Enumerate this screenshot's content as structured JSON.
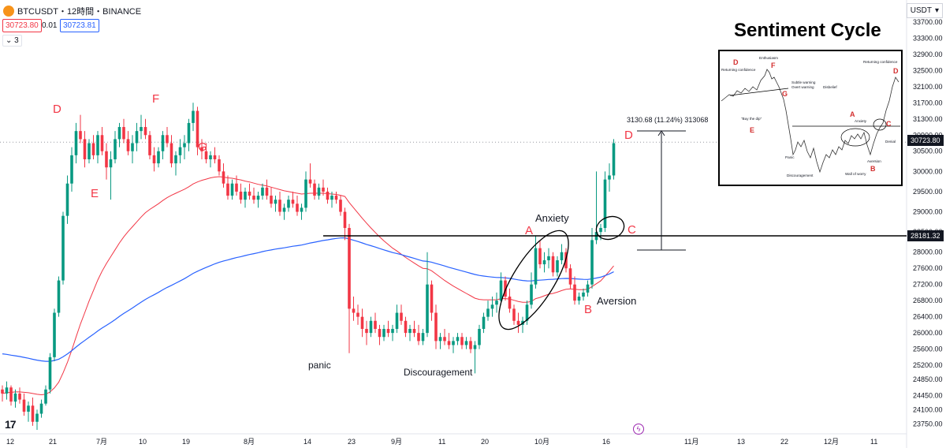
{
  "header": {
    "symbol": "BTCUSDT・12時間・BINANCE",
    "bid": "30723.80",
    "spread": "0.01",
    "ask": "30723.81",
    "layers": "3",
    "currency": "USDT"
  },
  "colors": {
    "up": "#089981",
    "down": "#f23645",
    "ema_short": "#f23645",
    "ema_long": "#2962ff",
    "annotation_red": "#f23645",
    "bitcoin_logo": "#f7931a"
  },
  "chart_data": {
    "type": "candlestick",
    "y_axis": {
      "ticks": [
        "33700.00",
        "33300.00",
        "32900.00",
        "32500.00",
        "32100.00",
        "31700.00",
        "31300.00",
        "30900.00",
        "30500.00",
        "30000.00",
        "29500.00",
        "29000.00",
        "28500.00",
        "28000.00",
        "27600.00",
        "27200.00",
        "26800.00",
        "26400.00",
        "26000.00",
        "25600.00",
        "25200.00",
        "24850.00",
        "24450.00",
        "24100.00",
        "23750.00"
      ],
      "range": [
        23600,
        34050
      ]
    },
    "x_axis": {
      "ticks": [
        "12",
        "21",
        "7月",
        "10",
        "19",
        "8月",
        "14",
        "23",
        "9月",
        "11",
        "20",
        "10月",
        "16",
        "11月",
        "13",
        "22",
        "12月",
        "11"
      ]
    },
    "price_labels": {
      "current": "30723.80",
      "level": "28181.32"
    },
    "candles": [
      [
        24600,
        24700,
        24300,
        24500
      ],
      [
        24500,
        24800,
        24350,
        24650
      ],
      [
        24650,
        24700,
        24200,
        24300
      ],
      [
        24300,
        24600,
        24150,
        24500
      ],
      [
        24500,
        24650,
        24250,
        24350
      ],
      [
        24350,
        24500,
        23950,
        24050
      ],
      [
        24050,
        24300,
        23800,
        24200
      ],
      [
        24200,
        24400,
        23700,
        23800
      ],
      [
        23800,
        24100,
        23600,
        24000
      ],
      [
        24000,
        24350,
        23900,
        24250
      ],
      [
        24250,
        24700,
        24200,
        24600
      ],
      [
        24600,
        25500,
        24500,
        25400
      ],
      [
        25400,
        26600,
        25300,
        26500
      ],
      [
        26500,
        27400,
        26400,
        27300
      ],
      [
        27300,
        29000,
        27200,
        28900
      ],
      [
        28900,
        29900,
        28700,
        29700
      ],
      [
        29700,
        30600,
        29500,
        30400
      ],
      [
        30400,
        31200,
        30200,
        31000
      ],
      [
        31000,
        31400,
        30700,
        30800
      ],
      [
        30800,
        31000,
        30100,
        30300
      ],
      [
        30300,
        30800,
        30200,
        30700
      ],
      [
        30700,
        30900,
        30300,
        30400
      ],
      [
        30400,
        31000,
        30200,
        30900
      ],
      [
        30900,
        31100,
        30400,
        30500
      ],
      [
        30500,
        30700,
        29800,
        30100
      ],
      [
        30100,
        30500,
        29300,
        30300
      ],
      [
        30300,
        31000,
        30200,
        30800
      ],
      [
        30800,
        31200,
        30600,
        31100
      ],
      [
        31100,
        31300,
        30700,
        30800
      ],
      [
        30800,
        31000,
        30400,
        30500
      ],
      [
        30500,
        30900,
        30200,
        30700
      ],
      [
        30700,
        31200,
        30500,
        31000
      ],
      [
        31000,
        31400,
        30800,
        31100
      ],
      [
        31100,
        31300,
        30800,
        30900
      ],
      [
        30900,
        31000,
        30300,
        30400
      ],
      [
        30400,
        30600,
        30000,
        30200
      ],
      [
        30200,
        30600,
        30100,
        30500
      ],
      [
        30500,
        31000,
        30300,
        30900
      ],
      [
        30900,
        31100,
        30600,
        30700
      ],
      [
        30700,
        30900,
        30100,
        30200
      ],
      [
        30200,
        30500,
        29900,
        30400
      ],
      [
        30400,
        30800,
        30200,
        30600
      ],
      [
        30600,
        30900,
        30300,
        30700
      ],
      [
        30700,
        31300,
        30500,
        31200
      ],
      [
        31200,
        31700,
        31000,
        31500
      ],
      [
        31500,
        31600,
        30400,
        30600
      ],
      [
        30600,
        30800,
        30300,
        30500
      ],
      [
        30500,
        30700,
        30200,
        30300
      ],
      [
        30300,
        30500,
        30100,
        30400
      ],
      [
        30400,
        30600,
        30200,
        30300
      ],
      [
        30300,
        30400,
        29900,
        30000
      ],
      [
        30000,
        30200,
        29600,
        29700
      ],
      [
        29700,
        29900,
        29300,
        29400
      ],
      [
        29400,
        29800,
        29300,
        29700
      ],
      [
        29700,
        29900,
        29400,
        29500
      ],
      [
        29500,
        29700,
        29200,
        29300
      ],
      [
        29300,
        29600,
        29100,
        29500
      ],
      [
        29500,
        29700,
        29300,
        29400
      ],
      [
        29400,
        29600,
        29200,
        29300
      ],
      [
        29300,
        29500,
        29100,
        29400
      ],
      [
        29400,
        29700,
        29300,
        29600
      ],
      [
        29600,
        29800,
        29300,
        29400
      ],
      [
        29400,
        29600,
        29100,
        29200
      ],
      [
        29200,
        29400,
        29000,
        29300
      ],
      [
        29300,
        29500,
        28900,
        29000
      ],
      [
        29000,
        29200,
        28800,
        29100
      ],
      [
        29100,
        29400,
        29000,
        29300
      ],
      [
        29300,
        29500,
        29100,
        29200
      ],
      [
        29200,
        29400,
        28900,
        29000
      ],
      [
        29000,
        29200,
        28800,
        29100
      ],
      [
        29100,
        30000,
        29000,
        29800
      ],
      [
        29800,
        30200,
        29600,
        29700
      ],
      [
        29700,
        29800,
        29300,
        29400
      ],
      [
        29400,
        29700,
        29300,
        29600
      ],
      [
        29600,
        29800,
        29400,
        29500
      ],
      [
        29500,
        29600,
        29200,
        29300
      ],
      [
        29300,
        29500,
        29100,
        29400
      ],
      [
        29400,
        29500,
        29200,
        29300
      ],
      [
        29300,
        29400,
        28900,
        29000
      ],
      [
        29000,
        29100,
        28300,
        28600
      ],
      [
        28600,
        28700,
        25500,
        26600
      ],
      [
        26600,
        26900,
        26300,
        26500
      ],
      [
        26500,
        26700,
        26200,
        26400
      ],
      [
        26400,
        26600,
        25900,
        26100
      ],
      [
        26100,
        26300,
        25700,
        26000
      ],
      [
        26000,
        26400,
        25900,
        26300
      ],
      [
        26300,
        26500,
        26000,
        26100
      ],
      [
        26100,
        26200,
        25700,
        25900
      ],
      [
        25900,
        26200,
        25800,
        26100
      ],
      [
        26100,
        26300,
        25900,
        26000
      ],
      [
        26000,
        26200,
        25800,
        26100
      ],
      [
        26100,
        26700,
        26000,
        26500
      ],
      [
        26500,
        26700,
        26200,
        26300
      ],
      [
        26300,
        26400,
        25900,
        26000
      ],
      [
        26000,
        26200,
        25800,
        26100
      ],
      [
        26100,
        26300,
        25900,
        26000
      ],
      [
        26000,
        26200,
        25700,
        25800
      ],
      [
        25800,
        26100,
        25700,
        26000
      ],
      [
        26000,
        28000,
        25900,
        27200
      ],
      [
        27200,
        27300,
        26300,
        26500
      ],
      [
        26500,
        26700,
        25600,
        25800
      ],
      [
        25800,
        26000,
        25600,
        25900
      ],
      [
        25900,
        26100,
        25700,
        25800
      ],
      [
        25800,
        26000,
        25600,
        25700
      ],
      [
        25700,
        25900,
        25500,
        25800
      ],
      [
        25800,
        26000,
        25700,
        25900
      ],
      [
        25900,
        26000,
        25600,
        25700
      ],
      [
        25700,
        25900,
        25600,
        25800
      ],
      [
        25800,
        25900,
        25500,
        25600
      ],
      [
        25600,
        25800,
        25000,
        25700
      ],
      [
        25700,
        26200,
        25600,
        26100
      ],
      [
        26100,
        26500,
        26000,
        26400
      ],
      [
        26400,
        26800,
        26300,
        26600
      ],
      [
        26600,
        26900,
        26400,
        26700
      ],
      [
        26700,
        27000,
        26500,
        26800
      ],
      [
        26800,
        27500,
        26700,
        27300
      ],
      [
        27300,
        27400,
        26800,
        26900
      ],
      [
        26900,
        27100,
        26500,
        26600
      ],
      [
        26600,
        26700,
        26200,
        26300
      ],
      [
        26300,
        26500,
        26000,
        26200
      ],
      [
        26200,
        26400,
        26000,
        26300
      ],
      [
        26300,
        26800,
        26200,
        26700
      ],
      [
        26700,
        27500,
        26600,
        27200
      ],
      [
        27200,
        28400,
        27100,
        28100
      ],
      [
        28100,
        28300,
        27600,
        27700
      ],
      [
        27700,
        28000,
        27500,
        27800
      ],
      [
        27800,
        28100,
        27600,
        27900
      ],
      [
        27900,
        28000,
        27400,
        27500
      ],
      [
        27500,
        27900,
        27400,
        27800
      ],
      [
        27800,
        28200,
        27700,
        28000
      ],
      [
        28000,
        28100,
        27500,
        27600
      ],
      [
        27600,
        27700,
        27100,
        27200
      ],
      [
        27200,
        27400,
        26700,
        26800
      ],
      [
        26800,
        27000,
        26700,
        26900
      ],
      [
        26900,
        27100,
        26800,
        27000
      ],
      [
        27000,
        27300,
        26900,
        27200
      ],
      [
        27200,
        28600,
        27100,
        28300
      ],
      [
        28300,
        30000,
        28200,
        28500
      ],
      [
        28500,
        28700,
        28300,
        28600
      ],
      [
        28600,
        30000,
        28500,
        29800
      ],
      [
        29800,
        30200,
        29500,
        29900
      ],
      [
        29900,
        30800,
        29800,
        30700
      ]
    ],
    "ema_short": [
      24500,
      24520,
      24530,
      24540,
      24540,
      24530,
      24520,
      24500,
      24480,
      24470,
      24480,
      24540,
      24640,
      24780,
      25010,
      25270,
      25570,
      25900,
      26220,
      26500,
      26790,
      27050,
      27310,
      27530,
      27720,
      27890,
      28060,
      28230,
      28380,
      28510,
      28630,
      28750,
      28870,
      28980,
      29060,
      29130,
      29200,
      29280,
      29350,
      29410,
      29460,
      29510,
      29560,
      29620,
      29690,
      29740,
      29780,
      29810,
      29840,
      29860,
      29870,
      29860,
      29840,
      29830,
      29810,
      29790,
      29760,
      29740,
      29710,
      29680,
      29660,
      29640,
      29610,
      29580,
      29550,
      29520,
      29500,
      29480,
      29460,
      29440,
      29450,
      29460,
      29460,
      29460,
      29460,
      29450,
      29440,
      29430,
      29410,
      29380,
      29230,
      29100,
      28970,
      28840,
      28720,
      28600,
      28490,
      28380,
      28280,
      28190,
      28100,
      28030,
      27950,
      27870,
      27800,
      27730,
      27660,
      27600,
      27590,
      27540,
      27460,
      27380,
      27300,
      27230,
      27160,
      27100,
      27040,
      26980,
      26920,
      26860,
      26830,
      26820,
      26820,
      26820,
      26820,
      26850,
      26850,
      26840,
      26810,
      26780,
      26760,
      26760,
      26780,
      26850,
      26880,
      26920,
      26960,
      26980,
      27010,
      27050,
      27080,
      27090,
      27080,
      27070,
      27070,
      27080,
      27150,
      27220,
      27290,
      27410,
      27530,
      27660
    ]
  },
  "annotations": {
    "measure": "3130.68 (11.24%) 313068",
    "labels": {
      "D1": "D",
      "F": "F",
      "G": "G",
      "E": "E",
      "A": "A",
      "C": "C",
      "D2": "D",
      "B": "B",
      "anxiety": "Anxiety",
      "aversion": "Aversion",
      "panic": "panic",
      "discouragement": "Discouragement"
    }
  },
  "inset": {
    "title": "Sentiment Cycle",
    "labels": {
      "D1": "D",
      "returning1": "Returning confidence",
      "enthusiasm": "Enthusiasm",
      "F": "F",
      "subtle": "Subtle warning",
      "overt": "Overt warning",
      "disbelief": "Disbelief",
      "G": "G",
      "buy": "\"Buy the dip\"",
      "E": "E",
      "A": "A",
      "anxiety": "Anxiety",
      "C": "C",
      "denial": "Denial",
      "returning2": "Returning confidence",
      "D2": "D",
      "panic": "Panic",
      "discouragement": "Discouragement",
      "wall": "Wall of worry",
      "aversion": "Aversion",
      "B": "B"
    }
  }
}
